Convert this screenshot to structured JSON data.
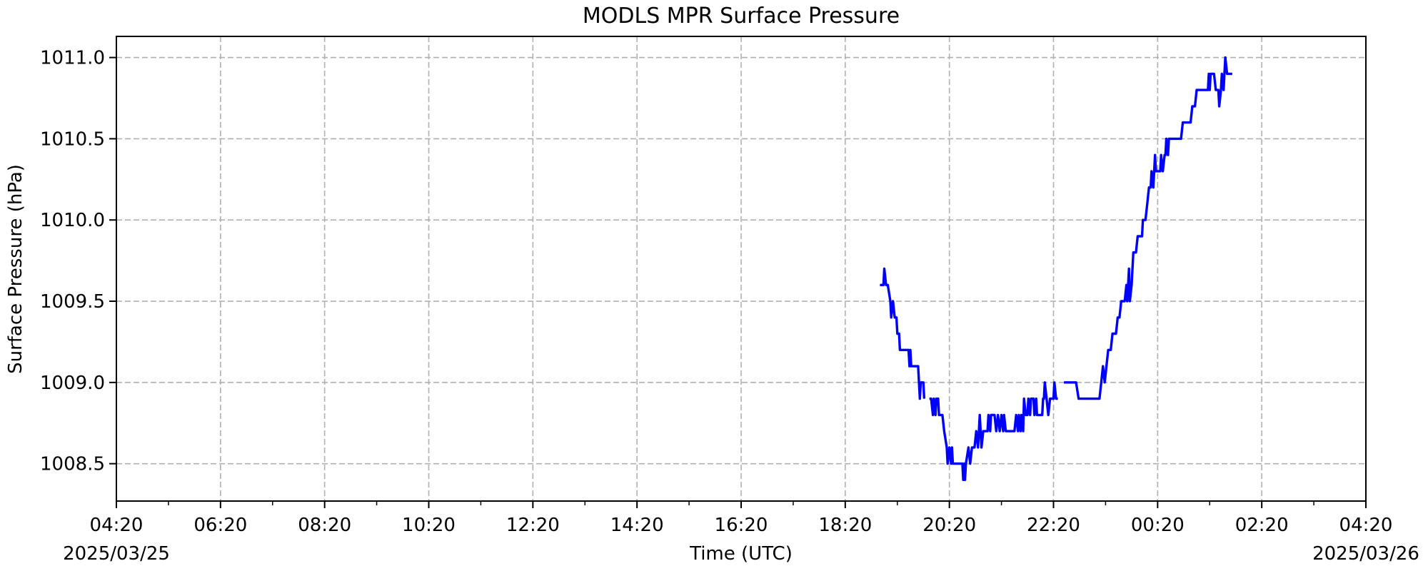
{
  "chart_data": {
    "type": "line",
    "title": "MODLS MPR Surface Pressure",
    "xlabel": "Time (UTC)",
    "ylabel": "Surface Pressure (hPa)",
    "grid": true,
    "line_color": "#0000ff",
    "x_unit": "minutes past 2025/03/25 04:20 UTC",
    "xlim": [
      0,
      1440
    ],
    "ylim": [
      1008.27,
      1011.13
    ],
    "x_ticks": [
      {
        "value": 0,
        "label": "04:20"
      },
      {
        "value": 120,
        "label": "06:20"
      },
      {
        "value": 240,
        "label": "08:20"
      },
      {
        "value": 360,
        "label": "10:20"
      },
      {
        "value": 480,
        "label": "12:20"
      },
      {
        "value": 600,
        "label": "14:20"
      },
      {
        "value": 720,
        "label": "16:20"
      },
      {
        "value": 840,
        "label": "18:20"
      },
      {
        "value": 960,
        "label": "20:20"
      },
      {
        "value": 1080,
        "label": "22:20"
      },
      {
        "value": 1200,
        "label": "00:20"
      },
      {
        "value": 1320,
        "label": "02:20"
      },
      {
        "value": 1440,
        "label": "04:20"
      }
    ],
    "x_minor_step": 60,
    "y_ticks": [
      {
        "value": 1008.5,
        "label": "1008.5"
      },
      {
        "value": 1009.0,
        "label": "1009.0"
      },
      {
        "value": 1009.5,
        "label": "1009.5"
      },
      {
        "value": 1010.0,
        "label": "1010.0"
      },
      {
        "value": 1010.5,
        "label": "1010.5"
      },
      {
        "value": 1011.0,
        "label": "1011.0"
      }
    ],
    "date_labels": {
      "start": "2025/03/25",
      "end": "2025/03/26"
    },
    "series": [
      {
        "segments": [
          [
            [
              880,
              1009.6
            ],
            [
              884,
              1009.6
            ],
            [
              885,
              1009.7
            ],
            [
              887,
              1009.6
            ],
            [
              889,
              1009.6
            ],
            [
              892,
              1009.5
            ],
            [
              893,
              1009.4
            ],
            [
              895,
              1009.5
            ],
            [
              897,
              1009.4
            ],
            [
              899,
              1009.4
            ],
            [
              900,
              1009.3
            ],
            [
              902,
              1009.3
            ],
            [
              903,
              1009.2
            ],
            [
              908,
              1009.2
            ],
            [
              913,
              1009.2
            ],
            [
              914,
              1009.1
            ],
            [
              915,
              1009.2
            ],
            [
              916,
              1009.1
            ],
            [
              924,
              1009.1
            ],
            [
              926,
              1008.9
            ],
            [
              927,
              1009.0
            ],
            [
              930,
              1009.0
            ],
            [
              931,
              1008.9
            ]
          ],
          [
            [
              937,
              1008.9
            ],
            [
              939,
              1008.9
            ],
            [
              941,
              1008.8
            ],
            [
              942,
              1008.9
            ],
            [
              944,
              1008.8
            ],
            [
              945,
              1008.9
            ],
            [
              947,
              1008.9
            ],
            [
              948,
              1008.8
            ],
            [
              952,
              1008.8
            ],
            [
              954,
              1008.7
            ],
            [
              957,
              1008.6
            ],
            [
              958,
              1008.5
            ],
            [
              960,
              1008.6
            ],
            [
              962,
              1008.5
            ],
            [
              963,
              1008.6
            ],
            [
              964,
              1008.5
            ],
            [
              969,
              1008.5
            ],
            [
              975,
              1008.5
            ],
            [
              976,
              1008.4
            ],
            [
              977,
              1008.5
            ],
            [
              978,
              1008.4
            ],
            [
              979,
              1008.5
            ],
            [
              982,
              1008.6
            ],
            [
              984,
              1008.5
            ],
            [
              986,
              1008.6
            ],
            [
              989,
              1008.6
            ],
            [
              991,
              1008.7
            ],
            [
              993,
              1008.6
            ],
            [
              995,
              1008.8
            ],
            [
              997,
              1008.6
            ],
            [
              999,
              1008.7
            ],
            [
              1004,
              1008.7
            ],
            [
              1005,
              1008.8
            ],
            [
              1007,
              1008.7
            ],
            [
              1008,
              1008.8
            ],
            [
              1012,
              1008.8
            ],
            [
              1014,
              1008.7
            ],
            [
              1016,
              1008.8
            ],
            [
              1018,
              1008.7
            ],
            [
              1020,
              1008.8
            ],
            [
              1022,
              1008.7
            ],
            [
              1023,
              1008.8
            ],
            [
              1025,
              1008.7
            ],
            [
              1035,
              1008.7
            ],
            [
              1037,
              1008.8
            ],
            [
              1039,
              1008.7
            ],
            [
              1040,
              1008.8
            ],
            [
              1042,
              1008.7
            ],
            [
              1043,
              1008.8
            ],
            [
              1045,
              1008.7
            ],
            [
              1046,
              1008.9
            ],
            [
              1048,
              1008.8
            ],
            [
              1050,
              1008.8
            ],
            [
              1051,
              1008.9
            ],
            [
              1053,
              1008.8
            ],
            [
              1054,
              1008.9
            ],
            [
              1057,
              1008.9
            ],
            [
              1058,
              1008.8
            ],
            [
              1060,
              1008.9
            ],
            [
              1061,
              1008.8
            ],
            [
              1067,
              1008.8
            ],
            [
              1068,
              1008.9
            ],
            [
              1069,
              1008.9
            ],
            [
              1070,
              1009.0
            ],
            [
              1072,
              1008.9
            ],
            [
              1074,
              1008.8
            ],
            [
              1076,
              1008.9
            ],
            [
              1080,
              1008.9
            ],
            [
              1081,
              1009.0
            ],
            [
              1083,
              1008.9
            ],
            [
              1085,
              1008.9
            ]
          ],
          [
            [
              1092,
              1009.0
            ],
            [
              1106,
              1009.0
            ],
            [
              1109,
              1008.9
            ],
            [
              1133,
              1008.9
            ],
            [
              1137,
              1009.1
            ],
            [
              1139,
              1009.0
            ],
            [
              1143,
              1009.2
            ],
            [
              1146,
              1009.2
            ],
            [
              1148,
              1009.3
            ],
            [
              1152,
              1009.3
            ],
            [
              1154,
              1009.4
            ],
            [
              1156,
              1009.4
            ],
            [
              1158,
              1009.5
            ],
            [
              1162,
              1009.5
            ],
            [
              1164,
              1009.6
            ],
            [
              1165,
              1009.5
            ],
            [
              1167,
              1009.7
            ],
            [
              1168,
              1009.5
            ],
            [
              1170,
              1009.6
            ],
            [
              1172,
              1009.8
            ],
            [
              1175,
              1009.8
            ],
            [
              1177,
              1009.9
            ],
            [
              1182,
              1009.9
            ],
            [
              1183,
              1010.0
            ],
            [
              1186,
              1010.0
            ],
            [
              1188,
              1010.1
            ],
            [
              1190,
              1010.2
            ],
            [
              1192,
              1010.2
            ],
            [
              1193,
              1010.3
            ],
            [
              1195,
              1010.2
            ],
            [
              1197,
              1010.4
            ],
            [
              1198,
              1010.3
            ],
            [
              1200,
              1010.3
            ],
            [
              1203,
              1010.3
            ],
            [
              1204,
              1010.4
            ],
            [
              1206,
              1010.3
            ],
            [
              1208,
              1010.4
            ],
            [
              1209,
              1010.4
            ],
            [
              1210,
              1010.5
            ],
            [
              1212,
              1010.4
            ],
            [
              1213,
              1010.5
            ],
            [
              1218,
              1010.5
            ],
            [
              1227,
              1010.5
            ],
            [
              1229,
              1010.6
            ],
            [
              1238,
              1010.6
            ],
            [
              1240,
              1010.7
            ],
            [
              1243,
              1010.7
            ],
            [
              1245,
              1010.8
            ],
            [
              1253,
              1010.8
            ],
            [
              1258,
              1010.8
            ],
            [
              1259,
              1010.9
            ],
            [
              1260,
              1010.8
            ],
            [
              1261,
              1010.9
            ],
            [
              1265,
              1010.9
            ],
            [
              1267,
              1010.8
            ],
            [
              1270,
              1010.8
            ],
            [
              1271,
              1010.7
            ],
            [
              1273,
              1010.8
            ],
            [
              1274,
              1010.9
            ],
            [
              1276,
              1010.8
            ],
            [
              1278,
              1011.0
            ],
            [
              1280,
              1010.9
            ],
            [
              1286,
              1010.9
            ]
          ]
        ]
      }
    ]
  }
}
